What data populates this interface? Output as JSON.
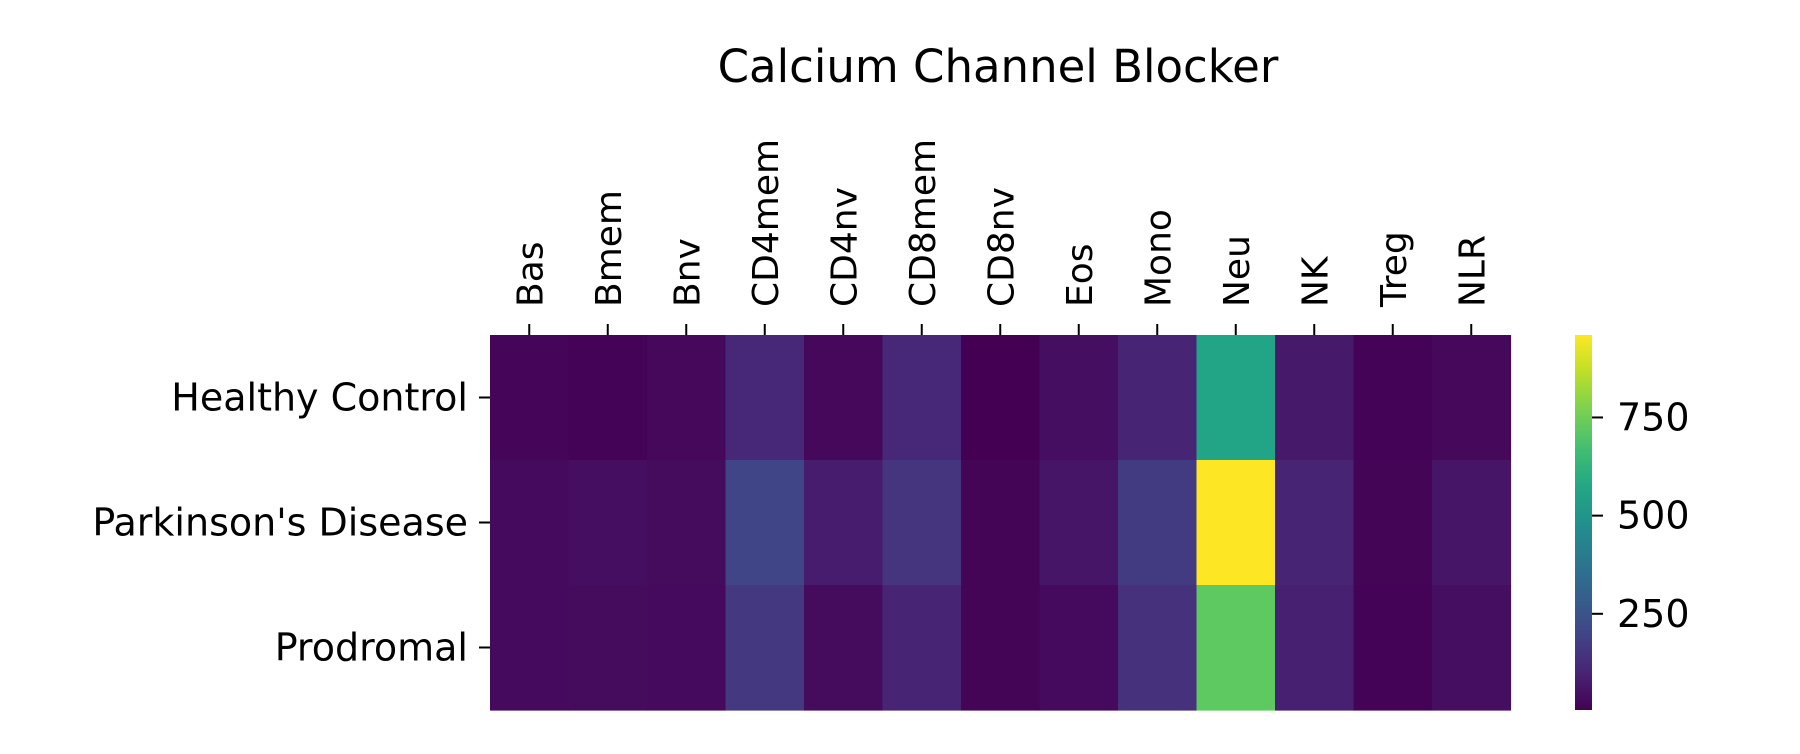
{
  "chart_data": {
    "type": "heatmap",
    "title": "Calcium Channel Blocker",
    "columns": [
      "Bas",
      "Bmem",
      "Bnv",
      "CD4mem",
      "CD4nv",
      "CD8mem",
      "CD8nv",
      "Eos",
      "Mono",
      "Neu",
      "NK",
      "Treg",
      "NLR"
    ],
    "rows": [
      "Healthy Control",
      "Parkinson's Disease",
      "Prodromal"
    ],
    "values": [
      [
        20,
        10,
        25,
        110,
        25,
        110,
        5,
        40,
        100,
        560,
        70,
        10,
        25
      ],
      [
        30,
        40,
        35,
        200,
        80,
        150,
        15,
        60,
        170,
        960,
        100,
        15,
        60
      ],
      [
        30,
        35,
        30,
        160,
        35,
        100,
        15,
        30,
        140,
        720,
        90,
        10,
        40
      ]
    ],
    "colorbar": {
      "colormap": "viridis",
      "vmin": 5,
      "vmax": 960,
      "ticks": [
        250,
        500,
        750
      ],
      "tick_labels": [
        "250",
        "500",
        "750"
      ]
    },
    "xlabel": "",
    "ylabel": "",
    "x_tick_position": "top",
    "grid": false
  }
}
